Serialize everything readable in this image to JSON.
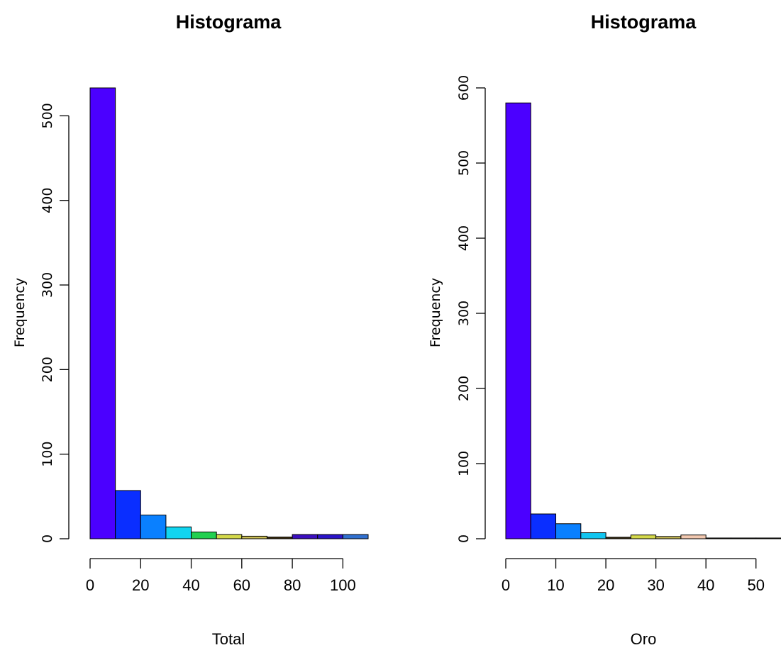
{
  "chart_data": [
    {
      "type": "bar",
      "title": "Histograma",
      "xlabel": "Total",
      "ylabel": "Frequency",
      "bins": [
        [
          0,
          10
        ],
        [
          10,
          20
        ],
        [
          20,
          30
        ],
        [
          30,
          40
        ],
        [
          40,
          50
        ],
        [
          50,
          60
        ],
        [
          60,
          70
        ],
        [
          70,
          80
        ],
        [
          80,
          90
        ],
        [
          90,
          100
        ],
        [
          100,
          110
        ]
      ],
      "values": [
        533,
        57,
        28,
        14,
        8,
        5,
        3,
        2,
        5,
        5,
        5
      ],
      "colors": [
        "#4B00FF",
        "#0A2EFF",
        "#0A80FF",
        "#11D5F0",
        "#22D050",
        "#D4D94A",
        "#C9BD54",
        "#3A2B0A",
        "#3B0FBF",
        "#2A14C8",
        "#3070D0"
      ],
      "xticks": [
        "0",
        "20",
        "40",
        "60",
        "80",
        "100"
      ],
      "xtick_values": [
        0,
        20,
        40,
        60,
        80,
        100
      ],
      "yticks": [
        "0",
        "100",
        "200",
        "300",
        "400",
        "500"
      ],
      "ytick_values": [
        0,
        100,
        200,
        300,
        400,
        500
      ],
      "xlim": [
        0,
        110
      ],
      "ylim": [
        0,
        533
      ]
    },
    {
      "type": "bar",
      "title": "Histograma",
      "xlabel": "Oro",
      "ylabel": "Frequency",
      "bins": [
        [
          0,
          5
        ],
        [
          5,
          10
        ],
        [
          10,
          15
        ],
        [
          15,
          20
        ],
        [
          20,
          25
        ],
        [
          25,
          30
        ],
        [
          30,
          35
        ],
        [
          35,
          40
        ],
        [
          40,
          45
        ],
        [
          45,
          50
        ],
        [
          50,
          55
        ]
      ],
      "values": [
        580,
        33,
        20,
        8,
        2,
        5,
        3,
        5,
        1,
        1,
        1
      ],
      "colors": [
        "#4B00FF",
        "#0A2EFF",
        "#0A80FF",
        "#11C5F0",
        "#3A2B0A",
        "#D4D94A",
        "#C9BD54",
        "#F2C8B0",
        "#3A2B0A",
        "#2A1A0A",
        "#2A1A0A"
      ],
      "xticks": [
        "0",
        "10",
        "20",
        "30",
        "40",
        "50"
      ],
      "xtick_values": [
        0,
        10,
        20,
        30,
        40,
        50
      ],
      "yticks": [
        "0",
        "100",
        "200",
        "300",
        "400",
        "500",
        "600"
      ],
      "ytick_values": [
        0,
        100,
        200,
        300,
        400,
        500,
        600
      ],
      "xlim": [
        0,
        55
      ],
      "ylim": [
        0,
        600
      ]
    }
  ]
}
